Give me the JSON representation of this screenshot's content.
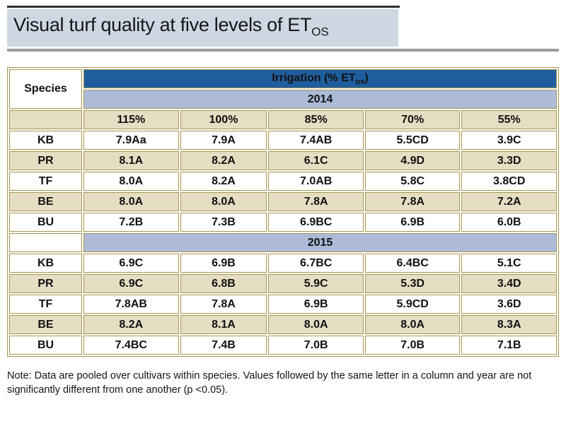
{
  "title": {
    "text": "Visual turf quality at five levels of ET",
    "subscript": "OS"
  },
  "chart_data": {
    "type": "table",
    "title": "Visual turf quality at five levels of ETOS",
    "header": {
      "species": "Species",
      "irrigation_text": "Irrigation (% ET",
      "irrigation_subscript": "os",
      "irrigation_suffix": ")"
    },
    "columns": [
      "115%",
      "100%",
      "85%",
      "70%",
      "55%"
    ],
    "sections": [
      {
        "year": "2014",
        "rows": [
          {
            "species": "KB",
            "values": [
              "7.9Aa",
              "7.9A",
              "7.4AB",
              "5.5CD",
              "3.9C"
            ]
          },
          {
            "species": "PR",
            "values": [
              "8.1A",
              "8.2A",
              "6.1C",
              "4.9D",
              "3.3D"
            ]
          },
          {
            "species": "TF",
            "values": [
              "8.0A",
              "8.2A",
              "7.0AB",
              "5.8C",
              "3.8CD"
            ]
          },
          {
            "species": "BE",
            "values": [
              "8.0A",
              "8.0A",
              "7.8A",
              "7.8A",
              "7.2A"
            ]
          },
          {
            "species": "BU",
            "values": [
              "7.2B",
              "7.3B",
              "6.9BC",
              "6.9B",
              "6.0B"
            ]
          }
        ]
      },
      {
        "year": "2015",
        "rows": [
          {
            "species": "KB",
            "values": [
              "6.9C",
              "6.9B",
              "6.7BC",
              "6.4BC",
              "5.1C"
            ]
          },
          {
            "species": "PR",
            "values": [
              "6.9C",
              "6.8B",
              "5.9C",
              "5.3D",
              "3.4D"
            ]
          },
          {
            "species": "TF",
            "values": [
              "7.8AB",
              "7.8A",
              "6.9B",
              "5.9CD",
              "3.6D"
            ]
          },
          {
            "species": "BE",
            "values": [
              "8.2A",
              "8.1A",
              "8.0A",
              "8.0A",
              "8.3A"
            ]
          },
          {
            "species": "BU",
            "values": [
              "7.4BC",
              "7.4B",
              "7.0B",
              "7.0B",
              "7.1B"
            ]
          }
        ]
      }
    ],
    "note": "Note: Data are pooled over cultivars within species. Values followed by the same letter in a column and year are not significantly different from one another (p <0.05)."
  },
  "note": "Note: Data are pooled over cultivars within species. Values followed by the same letter in a column and year are not significantly different from one another (p <0.05).",
  "colors": {
    "header_blue": "#1f5e9e",
    "year_band_blue": "#adbbd9",
    "row_tan": "#e6dec3",
    "border_gold": "#a6954f",
    "title_band": "#cdd8e3",
    "top_rule": "#2e2e2e",
    "gray_rule": "#9b9b9b"
  }
}
